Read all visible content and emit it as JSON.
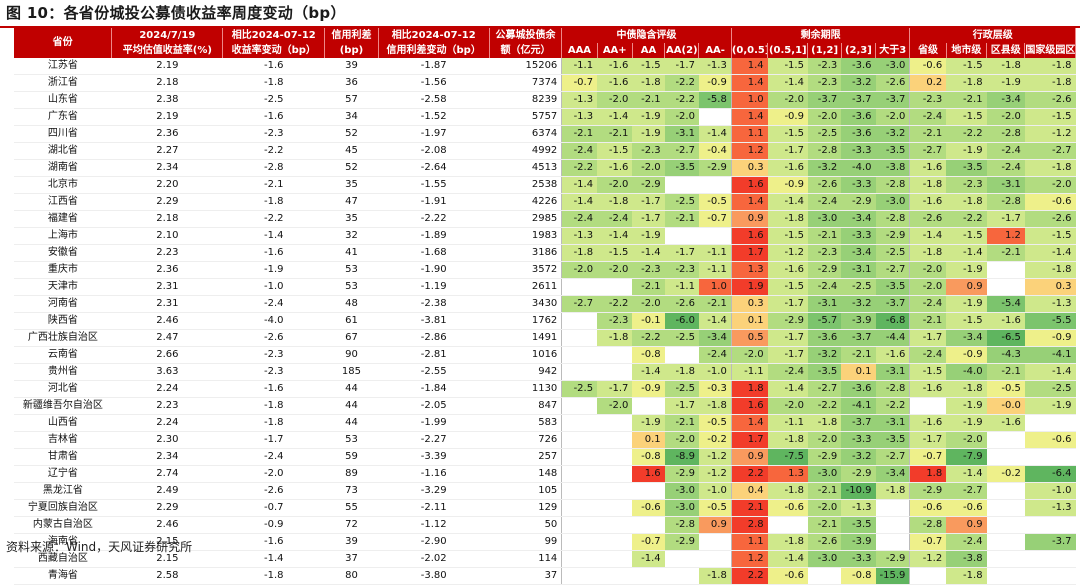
{
  "title": "图 10：各省份城投公募债收益率周度变动（bp）",
  "source": "资料来源：Wind，天风证券研究所",
  "header": {
    "province": "省份",
    "yield_date": "2024/7/19",
    "yield_label": "平均估值收益率(%)",
    "chg_date": "相比2024-07-12",
    "chg_label": "收益率变动（bp）",
    "spread_label1": "信用利差",
    "spread_label2": "(bp)",
    "spread_chg_date": "相比2024-07-12",
    "spread_chg_label": "信用利差变动（bp）",
    "balance1": "公募城投债余",
    "balance2": "额（亿元）",
    "group_rating": "中债隐含评级",
    "group_maturity": "剩余期限",
    "group_admin": "行政层级",
    "rating_cols": [
      "AAA",
      "AA+",
      "AA",
      "AA(2)",
      "AA-"
    ],
    "maturity_cols": [
      "(0,0.5]",
      "(0.5,1]",
      "(1,2]",
      "(2,3]",
      "大于3"
    ],
    "admin_cols": [
      "省级",
      "地市级",
      "区县级",
      "国家级园区"
    ]
  },
  "rows": [
    {
      "p": "江苏省",
      "y": "2.19",
      "c": "-1.6",
      "s": "39",
      "sc": "-1.87",
      "b": "15206",
      "r": [
        "-1.1",
        "-1.6",
        "-1.5",
        "-1.7",
        "-1.3"
      ],
      "m": [
        "1.4",
        "-1.5",
        "-2.3",
        "-3.6",
        "-3.0"
      ],
      "a": [
        "-0.6",
        "-1.5",
        "-1.8",
        "-1.8"
      ]
    },
    {
      "p": "浙江省",
      "y": "2.18",
      "c": "-1.8",
      "s": "36",
      "sc": "-1.56",
      "b": "7374",
      "r": [
        "-0.7",
        "-1.6",
        "-1.8",
        "-2.2",
        "-0.9"
      ],
      "m": [
        "1.4",
        "-1.4",
        "-2.3",
        "-3.2",
        "-2.6"
      ],
      "a": [
        "0.2",
        "-1.8",
        "-1.9",
        "-1.8"
      ]
    },
    {
      "p": "山东省",
      "y": "2.38",
      "c": "-2.5",
      "s": "57",
      "sc": "-2.58",
      "b": "8239",
      "r": [
        "-1.3",
        "-2.0",
        "-2.1",
        "-2.2",
        "-5.8"
      ],
      "m": [
        "1.0",
        "-2.0",
        "-3.7",
        "-3.7",
        "-3.7"
      ],
      "a": [
        "-2.3",
        "-2.1",
        "-3.4",
        "-2.6"
      ]
    },
    {
      "p": "广东省",
      "y": "2.19",
      "c": "-1.6",
      "s": "34",
      "sc": "-1.52",
      "b": "5757",
      "r": [
        "-1.3",
        "-1.4",
        "-1.9",
        "-2.0",
        ""
      ],
      "m": [
        "1.4",
        "-0.9",
        "-2.0",
        "-3.6",
        "-2.0"
      ],
      "a": [
        "-2.4",
        "-1.5",
        "-2.0",
        "-1.5"
      ]
    },
    {
      "p": "四川省",
      "y": "2.36",
      "c": "-2.3",
      "s": "52",
      "sc": "-1.97",
      "b": "6374",
      "r": [
        "-2.1",
        "-2.1",
        "-1.9",
        "-3.1",
        "-1.4"
      ],
      "m": [
        "1.1",
        "-1.5",
        "-2.5",
        "-3.6",
        "-3.2"
      ],
      "a": [
        "-2.1",
        "-2.2",
        "-2.8",
        "-1.2"
      ]
    },
    {
      "p": "湖北省",
      "y": "2.27",
      "c": "-2.2",
      "s": "45",
      "sc": "-2.08",
      "b": "4992",
      "r": [
        "-2.4",
        "-1.5",
        "-2.3",
        "-2.7",
        "-0.4"
      ],
      "m": [
        "1.2",
        "-1.7",
        "-2.8",
        "-3.3",
        "-3.5"
      ],
      "a": [
        "-2.7",
        "-1.9",
        "-2.4",
        "-2.7"
      ]
    },
    {
      "p": "湖南省",
      "y": "2.34",
      "c": "-2.8",
      "s": "52",
      "sc": "-2.64",
      "b": "4513",
      "r": [
        "-2.2",
        "-1.6",
        "-2.0",
        "-3.5",
        "-2.9"
      ],
      "m": [
        "0.3",
        "-1.6",
        "-3.2",
        "-4.0",
        "-3.8"
      ],
      "a": [
        "-1.6",
        "-3.5",
        "-2.4",
        "-1.8"
      ]
    },
    {
      "p": "北京市",
      "y": "2.20",
      "c": "-2.1",
      "s": "35",
      "sc": "-1.55",
      "b": "2538",
      "r": [
        "-1.4",
        "-2.0",
        "-2.9",
        "",
        ""
      ],
      "m": [
        "1.6",
        "-0.9",
        "-2.6",
        "-3.3",
        "-2.8"
      ],
      "a": [
        "-1.8",
        "-2.3",
        "-3.1",
        "-2.0"
      ]
    },
    {
      "p": "江西省",
      "y": "2.29",
      "c": "-1.8",
      "s": "47",
      "sc": "-1.91",
      "b": "4226",
      "r": [
        "-1.4",
        "-1.8",
        "-1.7",
        "-2.5",
        "-0.5"
      ],
      "m": [
        "1.4",
        "-1.4",
        "-2.4",
        "-2.9",
        "-3.0"
      ],
      "a": [
        "-1.6",
        "-1.8",
        "-2.8",
        "-0.6"
      ]
    },
    {
      "p": "福建省",
      "y": "2.18",
      "c": "-2.2",
      "s": "35",
      "sc": "-2.22",
      "b": "2985",
      "r": [
        "-2.4",
        "-2.4",
        "-1.7",
        "-2.1",
        "-0.7"
      ],
      "m": [
        "0.9",
        "-1.8",
        "-3.0",
        "-3.4",
        "-2.8"
      ],
      "a": [
        "-2.6",
        "-2.2",
        "-1.7",
        "-2.6"
      ]
    },
    {
      "p": "上海市",
      "y": "2.10",
      "c": "-1.4",
      "s": "32",
      "sc": "-1.89",
      "b": "1983",
      "r": [
        "-1.3",
        "-1.4",
        "-1.9",
        "",
        ""
      ],
      "m": [
        "1.6",
        "-1.5",
        "-2.1",
        "-3.3",
        "-2.9"
      ],
      "a": [
        "-1.4",
        "-1.5",
        "1.2",
        "-1.5"
      ]
    },
    {
      "p": "安徽省",
      "y": "2.23",
      "c": "-1.6",
      "s": "41",
      "sc": "-1.68",
      "b": "3186",
      "r": [
        "-1.8",
        "-1.5",
        "-1.4",
        "-1.7",
        "-1.1"
      ],
      "m": [
        "1.7",
        "-1.2",
        "-2.3",
        "-3.4",
        "-2.5"
      ],
      "a": [
        "-1.8",
        "-1.4",
        "-2.1",
        "-1.4"
      ]
    },
    {
      "p": "重庆市",
      "y": "2.36",
      "c": "-1.9",
      "s": "53",
      "sc": "-1.90",
      "b": "3572",
      "r": [
        "-2.0",
        "-2.0",
        "-2.3",
        "-2.3",
        "-1.1"
      ],
      "m": [
        "1.3",
        "-1.6",
        "-2.9",
        "-3.1",
        "-2.7"
      ],
      "a": [
        "-2.0",
        "-1.9",
        "",
        "-1.8"
      ]
    },
    {
      "p": "天津市",
      "y": "2.31",
      "c": "-1.0",
      "s": "53",
      "sc": "-1.19",
      "b": "2611",
      "r": [
        "",
        "",
        "-2.1",
        "-1.1",
        "1.0"
      ],
      "m": [
        "1.9",
        "-1.5",
        "-2.4",
        "-2.5",
        "-3.5"
      ],
      "a": [
        "-2.0",
        "0.9",
        "",
        "0.3"
      ]
    },
    {
      "p": "河南省",
      "y": "2.31",
      "c": "-2.4",
      "s": "48",
      "sc": "-2.38",
      "b": "3430",
      "r": [
        "-2.7",
        "-2.2",
        "-2.0",
        "-2.6",
        "-2.1"
      ],
      "m": [
        "0.3",
        "-1.7",
        "-3.1",
        "-3.2",
        "-3.7"
      ],
      "a": [
        "-2.4",
        "-1.9",
        "-5.4",
        "-1.3"
      ]
    },
    {
      "p": "陕西省",
      "y": "2.46",
      "c": "-4.0",
      "s": "61",
      "sc": "-3.81",
      "b": "1762",
      "r": [
        "",
        "-2.3",
        "-0.1",
        "-6.0",
        "-1.4"
      ],
      "m": [
        "0.1",
        "-2.9",
        "-5.7",
        "-3.9",
        "-6.8"
      ],
      "a": [
        "-2.1",
        "-1.5",
        "-1.6",
        "-5.5"
      ]
    },
    {
      "p": "广西壮族自治区",
      "y": "2.47",
      "c": "-2.6",
      "s": "67",
      "sc": "-2.86",
      "b": "1491",
      "r": [
        "",
        "-1.8",
        "-2.2",
        "-2.5",
        "-3.4"
      ],
      "m": [
        "0.5",
        "-1.7",
        "-3.6",
        "-3.7",
        "-4.4"
      ],
      "a": [
        "-1.7",
        "-3.4",
        "-6.5",
        "-0.9"
      ]
    },
    {
      "p": "云南省",
      "y": "2.66",
      "c": "-2.3",
      "s": "90",
      "sc": "-2.81",
      "b": "1016",
      "r": [
        "",
        "",
        "-0.8",
        "",
        "-2.4"
      ],
      "m": [
        "-2.0",
        "-1.7",
        "-3.2",
        "-2.1",
        "-1.6"
      ],
      "a": [
        "-2.4",
        "-0.9",
        "-4.3",
        "-4.1"
      ]
    },
    {
      "p": "贵州省",
      "y": "3.63",
      "c": "-2.3",
      "s": "185",
      "sc": "-2.55",
      "b": "942",
      "r": [
        "",
        "",
        "-1.4",
        "-1.8",
        "-1.0"
      ],
      "m": [
        "-1.1",
        "-2.4",
        "-3.5",
        "0.1",
        "-3.1"
      ],
      "a": [
        "-1.5",
        "-4.0",
        "-2.1",
        "-1.4"
      ]
    },
    {
      "p": "河北省",
      "y": "2.24",
      "c": "-1.6",
      "s": "44",
      "sc": "-1.84",
      "b": "1130",
      "r": [
        "-2.5",
        "-1.7",
        "-0.9",
        "-2.5",
        "-0.3"
      ],
      "m": [
        "1.8",
        "-1.4",
        "-2.7",
        "-3.6",
        "-2.8"
      ],
      "a": [
        "-1.6",
        "-1.8",
        "-0.5",
        "-2.5"
      ]
    },
    {
      "p": "新疆维吾尔自治区",
      "y": "2.23",
      "c": "-1.8",
      "s": "44",
      "sc": "-2.05",
      "b": "847",
      "r": [
        "",
        "-2.0",
        "",
        "-1.7",
        "-1.8"
      ],
      "m": [
        "1.6",
        "-2.0",
        "-2.2",
        "-4.1",
        "-2.2"
      ],
      "a": [
        "",
        "-1.9",
        "-0.0",
        "-1.9"
      ]
    },
    {
      "p": "山西省",
      "y": "2.24",
      "c": "-1.8",
      "s": "44",
      "sc": "-1.99",
      "b": "583",
      "r": [
        "",
        "",
        "-1.9",
        "-2.1",
        "-0.5"
      ],
      "m": [
        "1.4",
        "-1.1",
        "-1.8",
        "-3.7",
        "-3.1"
      ],
      "a": [
        "-1.6",
        "-1.9",
        "-1.6",
        ""
      ]
    },
    {
      "p": "吉林省",
      "y": "2.30",
      "c": "-1.7",
      "s": "53",
      "sc": "-2.27",
      "b": "726",
      "r": [
        "",
        "",
        "0.1",
        "-2.0",
        "-0.2"
      ],
      "m": [
        "1.7",
        "-1.8",
        "-2.0",
        "-3.3",
        "-3.5"
      ],
      "a": [
        "-1.7",
        "-2.0",
        "",
        "-0.6"
      ]
    },
    {
      "p": "甘肃省",
      "y": "2.34",
      "c": "-2.4",
      "s": "59",
      "sc": "-3.39",
      "b": "257",
      "r": [
        "",
        "",
        "-0.8",
        "-8.9",
        "-1.2"
      ],
      "m": [
        "0.9",
        "-7.5",
        "-2.9",
        "-3.2",
        "-2.7"
      ],
      "a": [
        "-0.7",
        "-7.9",
        "",
        ""
      ]
    },
    {
      "p": "辽宁省",
      "y": "2.74",
      "c": "-2.0",
      "s": "89",
      "sc": "-1.16",
      "b": "148",
      "r": [
        "",
        "",
        "1.6",
        "-2.9",
        "-1.2"
      ],
      "m": [
        "2.2",
        "1.3",
        "-3.0",
        "-2.9",
        "-3.4"
      ],
      "a": [
        "1.8",
        "-1.4",
        "-0.2",
        "-6.4"
      ]
    },
    {
      "p": "黑龙江省",
      "y": "2.49",
      "c": "-2.6",
      "s": "73",
      "sc": "-3.29",
      "b": "105",
      "r": [
        "",
        "",
        "",
        "-3.0",
        "-1.0"
      ],
      "m": [
        "0.4",
        "-1.8",
        "-2.1",
        "-10.9",
        "-1.8"
      ],
      "a": [
        "-2.9",
        "-2.7",
        "",
        "-1.0"
      ]
    },
    {
      "p": "宁夏回族自治区",
      "y": "2.29",
      "c": "-0.7",
      "s": "55",
      "sc": "-2.11",
      "b": "129",
      "r": [
        "",
        "",
        "-0.6",
        "-3.0",
        "-0.5"
      ],
      "m": [
        "2.1",
        "-0.6",
        "-2.0",
        "-1.3",
        ""
      ],
      "a": [
        "-0.6",
        "-0.6",
        "",
        "-1.3"
      ]
    },
    {
      "p": "内蒙古自治区",
      "y": "2.46",
      "c": "-0.9",
      "s": "72",
      "sc": "-1.12",
      "b": "50",
      "r": [
        "",
        "",
        "",
        "-2.8",
        "0.9"
      ],
      "m": [
        "2.8",
        "",
        "-2.1",
        "-3.5",
        ""
      ],
      "a": [
        "-2.8",
        "0.9",
        "",
        ""
      ]
    },
    {
      "p": "海南省",
      "y": "2.15",
      "c": "-1.6",
      "s": "39",
      "sc": "-2.90",
      "b": "99",
      "r": [
        "",
        "",
        "-0.7",
        "-2.9",
        ""
      ],
      "m": [
        "1.1",
        "-1.8",
        "-2.6",
        "-3.9",
        ""
      ],
      "a": [
        "-0.7",
        "-2.4",
        "",
        "-3.7"
      ]
    },
    {
      "p": "西藏自治区",
      "y": "2.15",
      "c": "-1.4",
      "s": "37",
      "sc": "-2.02",
      "b": "114",
      "r": [
        "",
        "",
        "-1.4",
        "",
        ""
      ],
      "m": [
        "1.2",
        "-1.4",
        "-3.0",
        "-3.3",
        "-2.9"
      ],
      "a": [
        "-1.2",
        "-3.8",
        "",
        ""
      ]
    },
    {
      "p": "青海省",
      "y": "2.58",
      "c": "-1.8",
      "s": "80",
      "sc": "-3.80",
      "b": "37",
      "r": [
        "",
        "",
        "",
        "",
        "-1.8"
      ],
      "m": [
        "2.2",
        "-0.6",
        "",
        "-0.8",
        "-15.9"
      ],
      "a": [
        "",
        "-1.8",
        "",
        ""
      ]
    }
  ]
}
